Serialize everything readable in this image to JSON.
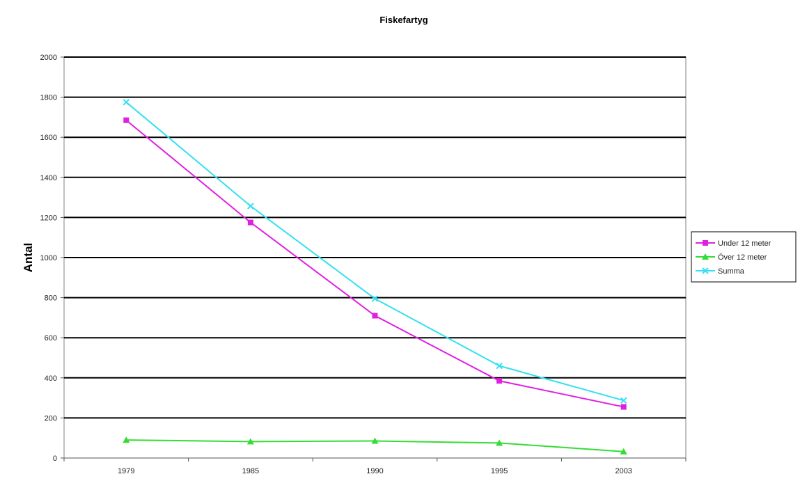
{
  "chart_data": {
    "type": "line",
    "title": "Fiskefartyg",
    "xlabel": "",
    "ylabel": "Antal",
    "categories": [
      "1979",
      "1985",
      "1990",
      "1995",
      "2003"
    ],
    "ylim": [
      0,
      2000
    ],
    "yticks": [
      0,
      200,
      400,
      600,
      800,
      1000,
      1200,
      1400,
      1600,
      1800,
      2000
    ],
    "grid": true,
    "legend_position": "right",
    "series": [
      {
        "name": "Under 12 meter",
        "values": [
          1685,
          1175,
          710,
          385,
          255
        ],
        "color": "#e020e0",
        "marker": "square"
      },
      {
        "name": "Över 12 meter",
        "values": [
          90,
          82,
          85,
          75,
          32
        ],
        "color": "#33dd33",
        "marker": "triangle"
      },
      {
        "name": "Summa",
        "values": [
          1775,
          1257,
          795,
          460,
          287
        ],
        "color": "#33e0f0",
        "marker": "x"
      }
    ]
  }
}
